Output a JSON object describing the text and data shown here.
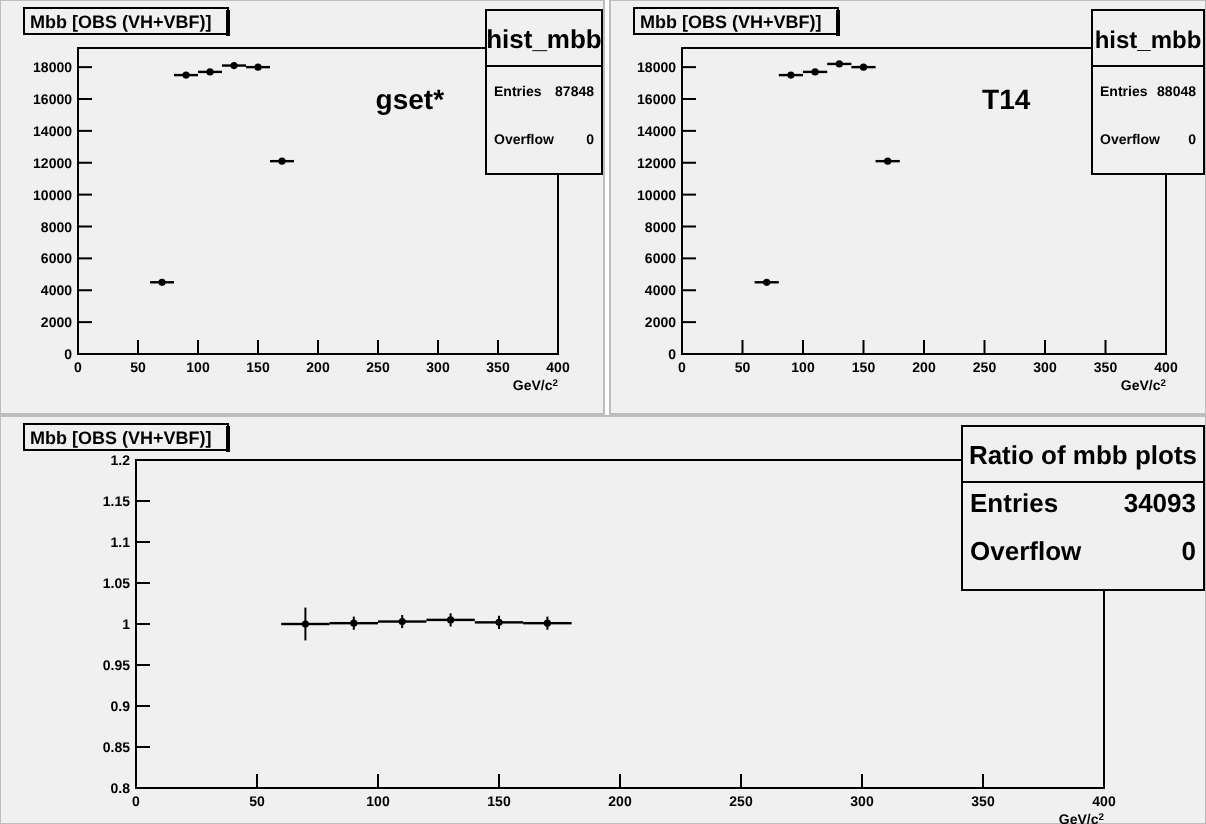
{
  "chart_data": [
    {
      "type": "scatter",
      "title": "Mbb [OBS (VH+VBF)]",
      "xlabel": "GeV/c$^{2}$",
      "x": [
        70,
        90,
        110,
        130,
        150,
        170
      ],
      "xlim": [
        0,
        400
      ],
      "xticks": [
        0,
        50,
        100,
        150,
        200,
        250,
        300,
        350,
        400
      ],
      "ylim": [
        0,
        19200
      ],
      "yticks": [
        0,
        2000,
        4000,
        6000,
        8000,
        10000,
        12000,
        14000,
        16000,
        18000
      ],
      "marker": "circle",
      "grid": false,
      "series": [
        {
          "color": "#000000",
          "values": [
            4500,
            17500,
            17700,
            18100,
            18000,
            12100
          ],
          "errors": [
            70,
            130,
            130,
            130,
            130,
            110
          ],
          "xerrors": [
            10,
            10,
            10,
            10,
            10,
            10
          ]
        }
      ],
      "annotations": [
        "hist_mbb",
        "Entries 87848",
        "Overflow 0",
        "gset*"
      ]
    },
    {
      "type": "scatter",
      "title": "Mbb [OBS (VH+VBF)]",
      "xlabel": "GeV/c$^{2}$",
      "x": [
        70,
        90,
        110,
        130,
        150,
        170
      ],
      "xlim": [
        0,
        400
      ],
      "xticks": [
        0,
        50,
        100,
        150,
        200,
        250,
        300,
        350,
        400
      ],
      "ylim": [
        0,
        19200
      ],
      "yticks": [
        0,
        2000,
        4000,
        6000,
        8000,
        10000,
        12000,
        14000,
        16000,
        18000
      ],
      "marker": "circle",
      "grid": false,
      "series": [
        {
          "color": "#000000",
          "values": [
            4500,
            17500,
            17700,
            18200,
            18000,
            12100
          ],
          "errors": [
            70,
            130,
            130,
            130,
            130,
            110
          ],
          "xerrors": [
            10,
            10,
            10,
            10,
            10,
            10
          ]
        }
      ],
      "annotations": [
        "hist_mbb",
        "Entries 88048",
        "Overflow 0",
        "T14"
      ]
    },
    {
      "type": "scatter",
      "title": "Mbb [OBS (VH+VBF)]",
      "xlabel": "GeV/c$^{2}$",
      "x": [
        70,
        90,
        110,
        130,
        150,
        170
      ],
      "xlim": [
        0,
        400
      ],
      "xticks": [
        0,
        50,
        100,
        150,
        200,
        250,
        300,
        350,
        400
      ],
      "ylim": [
        0.8,
        1.2
      ],
      "yticks": [
        {
          "value": 0.8,
          "label": "0.8"
        },
        0.85,
        0.9,
        0.95,
        {
          "value": 1,
          "label": "1"
        },
        1.05,
        1.1,
        1.15,
        1.2
      ],
      "marker": "circle",
      "grid": false,
      "series": [
        {
          "color": "#000000",
          "values": [
            1.0,
            1.001,
            1.003,
            1.005,
            1.002,
            1.001
          ],
          "errors": [
            0.02,
            0.008,
            0.008,
            0.008,
            0.008,
            0.008
          ],
          "xerrors": [
            10,
            10,
            10,
            10,
            10,
            10
          ]
        }
      ],
      "annotations": [
        "Ratio of mbb plots",
        "Entries 34093",
        "Overflow 0"
      ]
    }
  ]
}
